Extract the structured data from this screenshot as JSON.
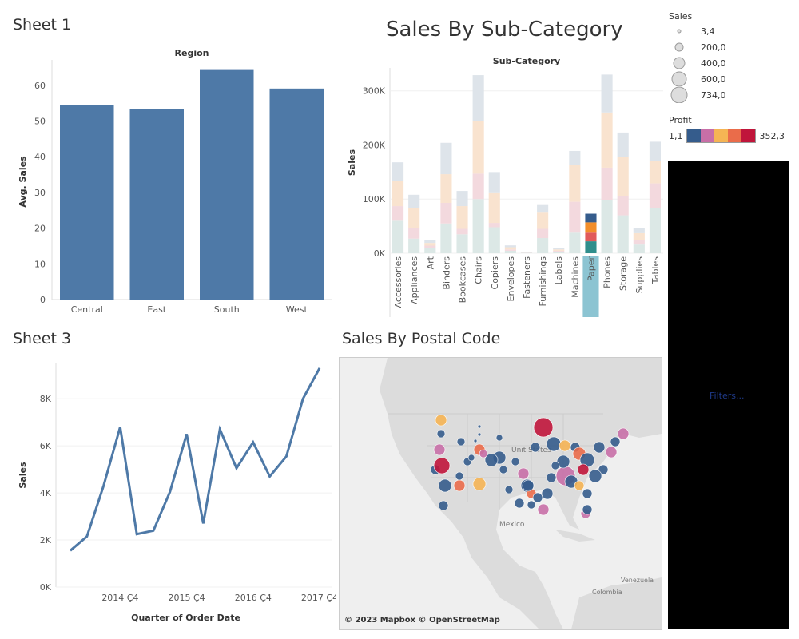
{
  "sheets": {
    "sheet1_title": "Sheet 1",
    "sheet2_title": "Sales By Sub-Category",
    "sheet3_title": "Sheet 3",
    "map_title": "Sales By Postal Code"
  },
  "legend": {
    "sales_title": "Sales",
    "sales_items": [
      "3,4",
      "200,0",
      "400,0",
      "600,0",
      "734,0"
    ],
    "profit_title": "Profit",
    "profit_min": "1,1",
    "profit_max": "352,3",
    "profit_colors": [
      "#355C8C",
      "#C86FA7",
      "#F5B454",
      "#EA6C4A",
      "#C0153B"
    ]
  },
  "filters_label": "Filters...",
  "map": {
    "attribution": "© 2023 Mapbox © OpenStreetMap",
    "labels": {
      "us": "Unit States",
      "mexico": "Mexico",
      "venezuela": "Venezuela",
      "colombia": "Colombia"
    }
  },
  "chart_data": [
    {
      "type": "bar",
      "header": "Region",
      "categories": [
        "Central",
        "East",
        "South",
        "West"
      ],
      "values": [
        54.5,
        53.3,
        64.3,
        59.1
      ],
      "ylabel": "Avg. Sales",
      "ylim": [
        0,
        66
      ],
      "yticks": [
        0,
        10,
        20,
        30,
        40,
        50,
        60
      ],
      "color": "#4E79A7"
    },
    {
      "type": "bar",
      "stacked": true,
      "header": "Sub-Category",
      "ylabel": "Sales",
      "ylim": [
        0,
        335000
      ],
      "yticks": [
        0,
        100000,
        200000,
        300000
      ],
      "ytick_labels": [
        "0K",
        "100K",
        "200K",
        "300K"
      ],
      "categories": [
        "Accessories",
        "Appliances",
        "Art",
        "Binders",
        "Bookcases",
        "Chairs",
        "Copiers",
        "Envelopes",
        "Fasteners",
        "Furnishings",
        "Labels",
        "Machines",
        "Paper",
        "Phones",
        "Storage",
        "Supplies",
        "Tables"
      ],
      "highlighted": "Paper",
      "stack_colors": [
        "#DCE8E6",
        "#F3D9DE",
        "#F9E3CF",
        "#DEE4EA"
      ],
      "highlight_colors": [
        "#2F8E8C",
        "#E15A5A",
        "#F28E2B",
        "#355C8C"
      ],
      "series": [
        {
          "values": [
            60000,
            27000,
            9000,
            55000,
            35000,
            100000,
            48000,
            4500,
            1000,
            28000,
            3000,
            38000,
            22000,
            98000,
            70000,
            16000,
            84000
          ]
        },
        {
          "values": [
            27000,
            20000,
            5000,
            38000,
            10000,
            47000,
            8000,
            2500,
            600,
            17000,
            1500,
            57000,
            16000,
            60000,
            35000,
            9000,
            45000
          ]
        },
        {
          "values": [
            47000,
            36000,
            5000,
            53000,
            42000,
            97000,
            55000,
            4000,
            700,
            30000,
            2500,
            68000,
            19000,
            102000,
            73000,
            12000,
            41000
          ]
        },
        {
          "values": [
            34000,
            25000,
            5000,
            58000,
            28000,
            85000,
            39000,
            3500,
            500,
            14000,
            3000,
            26000,
            16000,
            70000,
            45000,
            9000,
            36000
          ]
        }
      ]
    },
    {
      "type": "line",
      "xlabel": "Quarter of Order Date",
      "ylabel": "Sales",
      "ylim": [
        0,
        9500
      ],
      "yticks": [
        0,
        2000,
        4000,
        6000,
        8000
      ],
      "ytick_labels": [
        "0K",
        "2K",
        "4K",
        "6K",
        "8K"
      ],
      "xtick_labels": [
        "2014 Ç4",
        "2015 Ç4",
        "2016 Ç4",
        "2017 Ç4"
      ],
      "xtick_index": [
        3,
        7,
        11,
        15
      ],
      "values": [
        1550,
        2150,
        4300,
        6800,
        2250,
        2400,
        4050,
        6500,
        2700,
        6700,
        5050,
        6150,
        4700,
        5550,
        8000,
        9300
      ],
      "color": "#4E79A7"
    }
  ]
}
